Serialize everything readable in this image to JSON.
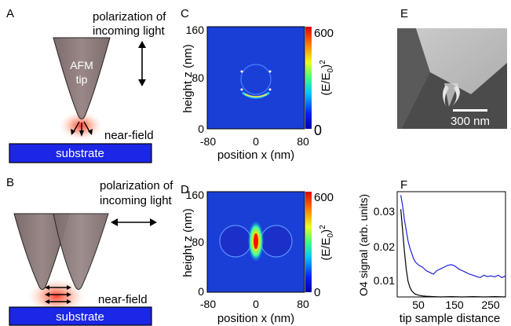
{
  "panels": {
    "A": {
      "letter": "A",
      "pol_line1": "polarization of",
      "pol_line2": "incoming light",
      "tip_line1": "AFM",
      "tip_line2": "tip",
      "nearfield": "near-field",
      "substrate": "substrate"
    },
    "B": {
      "letter": "B",
      "pol_line1": "polarization of",
      "pol_line2": "incoming light",
      "nearfield": "near-field",
      "substrate": "substrate"
    },
    "C": {
      "letter": "C",
      "ylabel": "height z (nm)",
      "xlabel": "position x (nm)",
      "yticks": [
        "160",
        "80",
        "0"
      ],
      "xticks": [
        "-80",
        "0",
        "80"
      ],
      "cbar_ticks": [
        "600",
        "0"
      ],
      "cbar_label": "(E/E",
      "cbar_sub": "0",
      "cbar_sup": "2"
    },
    "D": {
      "letter": "D",
      "ylabel": "height z (nm)",
      "xlabel": "position x (nm)",
      "yticks": [
        "160",
        "80",
        "0"
      ],
      "xticks": [
        "-80",
        "0",
        "80"
      ],
      "cbar_ticks": [
        "600",
        "0"
      ],
      "cbar_label": "(E/E",
      "cbar_sub": "0",
      "cbar_sup": "2"
    },
    "E": {
      "letter": "E",
      "scalebar": "300 nm"
    },
    "F": {
      "letter": "F",
      "ylabel": "O4 signal (arb. units)",
      "xlabel": "tip sample distance",
      "yticks": [
        "0.03",
        "0.02",
        "0.01"
      ],
      "xticks": [
        "50",
        "150",
        "250"
      ]
    }
  },
  "colors": {
    "substrate": "#1b26e6",
    "tip": "#8e7a7a",
    "field_bg": "#1a3fd6",
    "series_blue": "#2020d8",
    "series_black": "#000000"
  },
  "chart_data": {
    "type": "line",
    "ylabel": "O4 signal (arb. units)",
    "xlabel": "tip sample distance",
    "xlim": [
      0,
      300
    ],
    "ylim": [
      0.005,
      0.035
    ],
    "series": [
      {
        "color": "#2020d8",
        "x": [
          10,
          15,
          20,
          25,
          30,
          35,
          40,
          45,
          50,
          60,
          70,
          80,
          90,
          100,
          110,
          120,
          130,
          140,
          150,
          160,
          170,
          180,
          190,
          200,
          210,
          220,
          230,
          240,
          250,
          260,
          270,
          280,
          290,
          300
        ],
        "y": [
          0.034,
          0.031,
          0.027,
          0.024,
          0.021,
          0.019,
          0.0175,
          0.016,
          0.015,
          0.014,
          0.0135,
          0.0125,
          0.012,
          0.0115,
          0.0125,
          0.013,
          0.0135,
          0.014,
          0.0142,
          0.0138,
          0.013,
          0.0125,
          0.012,
          0.0115,
          0.0112,
          0.0108,
          0.0105,
          0.0112,
          0.0108,
          0.011,
          0.0107,
          0.0112,
          0.0105,
          0.011
        ]
      },
      {
        "color": "#000000",
        "x": [
          10,
          15,
          20,
          25,
          30,
          35,
          40,
          45,
          50,
          60,
          70,
          80,
          100,
          120,
          150,
          180,
          210,
          240,
          270,
          300
        ],
        "y": [
          0.03,
          0.024,
          0.018,
          0.013,
          0.0095,
          0.0078,
          0.0068,
          0.0062,
          0.0058,
          0.0055,
          0.0053,
          0.0052,
          0.0051,
          0.005,
          0.0051,
          0.005,
          0.0051,
          0.005,
          0.0051,
          0.005
        ]
      }
    ]
  }
}
